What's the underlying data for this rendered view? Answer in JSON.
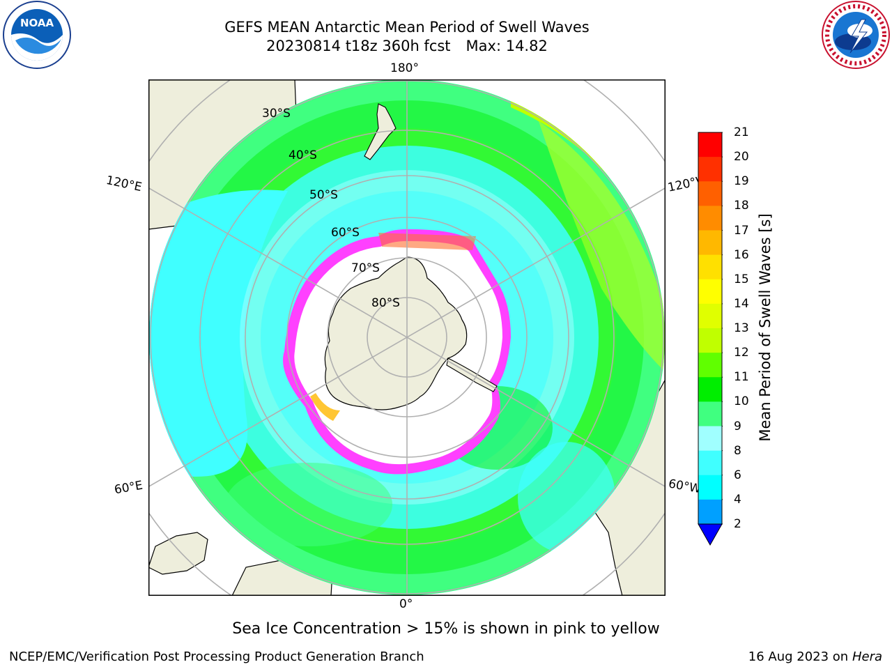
{
  "header": {
    "title_line1": "GEFS MEAN Antarctic Mean Period of Swell Waves",
    "title_line2_run": "20230814 t18z 360h fcst",
    "title_line2_max": "Max: 14.82"
  },
  "logos": {
    "left": "noaa-logo",
    "right": "national-weather-service-logo"
  },
  "map_labels": {
    "lon_180": "180°",
    "lon_0": "0°",
    "lon_120e": "120°E",
    "lon_120w": "120°W",
    "lon_60e": "60°E",
    "lon_60w": "60°W",
    "lat_30s": "30°S",
    "lat_40s": "40°S",
    "lat_50s": "50°S",
    "lat_60s": "60°S",
    "lat_70s": "70°S",
    "lat_80s": "80°S"
  },
  "colorbar": {
    "label": "Mean Period of Swell Waves [s]",
    "ticks": [
      "2",
      "4",
      "6",
      "8",
      "9",
      "10",
      "11",
      "12",
      "13",
      "14",
      "15",
      "16",
      "17",
      "18",
      "19",
      "20",
      "21"
    ],
    "colors": [
      "#0040ff",
      "#00a0ff",
      "#00ffff",
      "#40ffff",
      "#a0ffff",
      "#40ff80",
      "#00ee00",
      "#60ff00",
      "#c0ff00",
      "#e0ff00",
      "#ffff00",
      "#ffe000",
      "#ffb800",
      "#ff8c00",
      "#ff6000",
      "#ff3000",
      "#ff0000"
    ],
    "extend_low_color": "#0000ff"
  },
  "note": "Sea Ice Concentration > 15% is shown in pink to yellow",
  "footer": {
    "left": "NCEP/EMC/Verification Post Processing Product Generation Branch",
    "right_date": "16 Aug 2023 on",
    "right_host": "Hera"
  }
}
